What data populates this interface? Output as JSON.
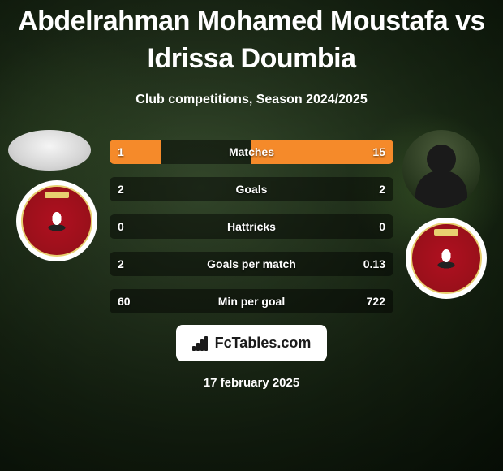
{
  "header": {
    "title": "Abdelrahman Mohamed Moustafa vs Idrissa Doumbia",
    "subtitle": "Club competitions, Season 2024/2025"
  },
  "colors": {
    "accent": "#f58a2a",
    "row_bg": "rgba(0,0,0,0.45)",
    "text": "#ffffff",
    "crest_bg": "#b01020"
  },
  "stats": {
    "rows": [
      {
        "label": "Matches",
        "left_value": "1",
        "right_value": "15",
        "left_fill_pct": 18,
        "right_fill_pct": 82
      },
      {
        "label": "Goals",
        "left_value": "2",
        "right_value": "2",
        "left_fill_pct": 0,
        "right_fill_pct": 0
      },
      {
        "label": "Hattricks",
        "left_value": "0",
        "right_value": "0",
        "left_fill_pct": 0,
        "right_fill_pct": 0
      },
      {
        "label": "Goals per match",
        "left_value": "2",
        "right_value": "0.13",
        "left_fill_pct": 0,
        "right_fill_pct": 0
      },
      {
        "label": "Min per goal",
        "left_value": "60",
        "right_value": "722",
        "left_fill_pct": 0,
        "right_fill_pct": 0
      }
    ]
  },
  "footer": {
    "brand": "FcTables.com",
    "date": "17 february 2025"
  }
}
